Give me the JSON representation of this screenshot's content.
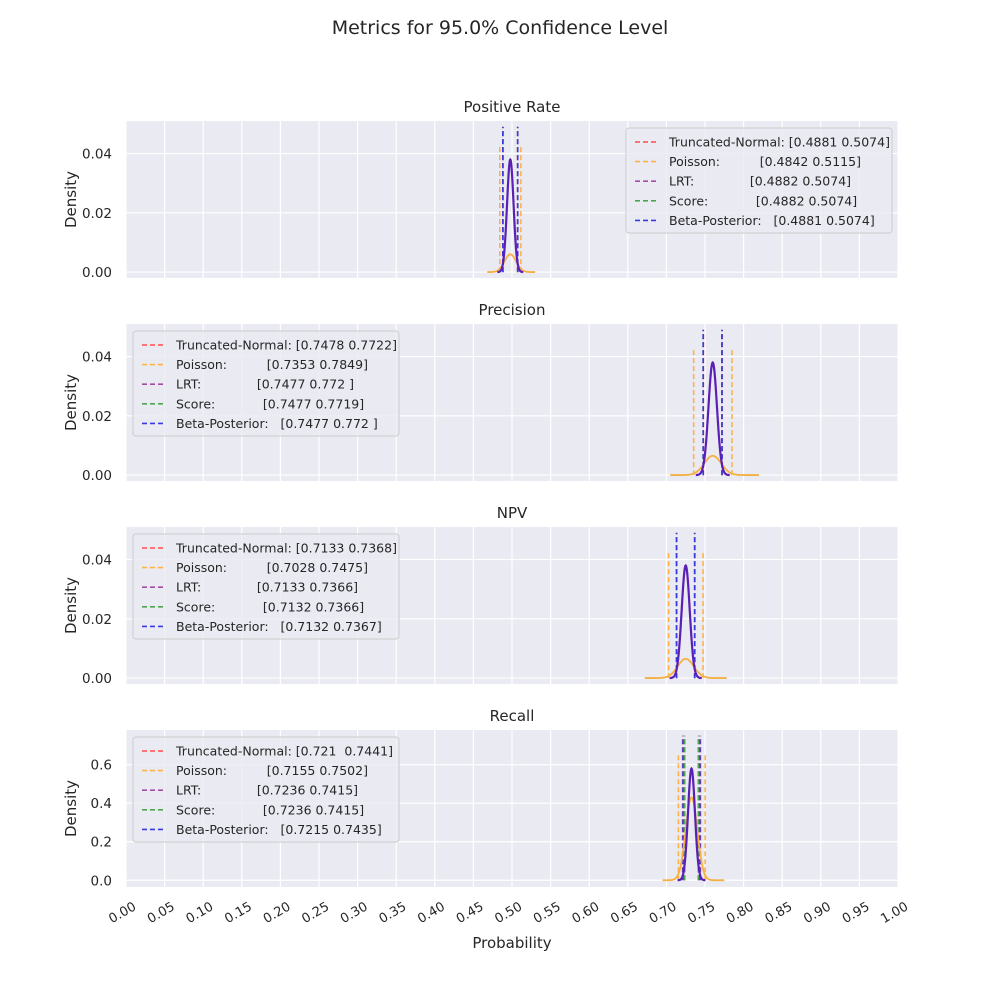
{
  "figure": {
    "title": "Metrics for 95.0% Confidence Level",
    "xlabel": "Probability",
    "ylabel": "Density"
  },
  "colors": {
    "background": "#eaeaf2",
    "grid": "#ffffff",
    "Truncated-Normal": "#ff4d4d",
    "Poisson": "#ffb347",
    "LRT": "#a64ca6",
    "Score": "#4ca64c",
    "Beta-Posterior": "#3a3adf",
    "density_main": "#5a1fb5",
    "density_poisson": "#f5b041"
  },
  "chart_data": [
    {
      "type": "line",
      "title": "Positive Rate",
      "xlim": [
        0,
        1
      ],
      "ylim": [
        -0.002,
        0.051
      ],
      "xticks": [
        "0.00",
        "0.05",
        "0.10",
        "0.15",
        "0.20",
        "0.25",
        "0.30",
        "0.35",
        "0.40",
        "0.45",
        "0.50",
        "0.55",
        "0.60",
        "0.65",
        "0.70",
        "0.75",
        "0.80",
        "0.85",
        "0.90",
        "0.95",
        "1.00"
      ],
      "yticks": [
        "0.00",
        "0.02",
        "0.04"
      ],
      "legend_position": "upper-right",
      "intervals": [
        {
          "name": "Truncated-Normal",
          "label": "Truncated-Normal: [0.4881 0.5074]",
          "lo": 0.4881,
          "hi": 0.5074
        },
        {
          "name": "Poisson",
          "label": "Poisson:          [0.4842 0.5115]",
          "lo": 0.4842,
          "hi": 0.5115
        },
        {
          "name": "LRT",
          "label": "LRT:              [0.4882 0.5074]",
          "lo": 0.4882,
          "hi": 0.5074
        },
        {
          "name": "Score",
          "label": "Score:            [0.4882 0.5074]",
          "lo": 0.4882,
          "hi": 0.5074
        },
        {
          "name": "Beta-Posterior",
          "label": "Beta-Posterior:   [0.4881 0.5074]",
          "lo": 0.4881,
          "hi": 0.5074
        }
      ],
      "ci_line_top": 0.049,
      "ci_line_top_poisson": 0.043,
      "density_center": 0.4978,
      "density_peak": 0.038,
      "density_sd": 0.0042,
      "poisson_density_peak": 0.006,
      "poisson_density_sd": 0.0075,
      "poisson_density_range": [
        0.468,
        0.53
      ]
    },
    {
      "type": "line",
      "title": "Precision",
      "xlim": [
        0,
        1
      ],
      "ylim": [
        -0.002,
        0.051
      ],
      "xticks": [
        "0.00",
        "0.05",
        "0.10",
        "0.15",
        "0.20",
        "0.25",
        "0.30",
        "0.35",
        "0.40",
        "0.45",
        "0.50",
        "0.55",
        "0.60",
        "0.65",
        "0.70",
        "0.75",
        "0.80",
        "0.85",
        "0.90",
        "0.95",
        "1.00"
      ],
      "yticks": [
        "0.00",
        "0.02",
        "0.04"
      ],
      "legend_position": "upper-left",
      "intervals": [
        {
          "name": "Truncated-Normal",
          "label": "Truncated-Normal: [0.7478 0.7722]",
          "lo": 0.7478,
          "hi": 0.7722
        },
        {
          "name": "Poisson",
          "label": "Poisson:          [0.7353 0.7849]",
          "lo": 0.7353,
          "hi": 0.7849
        },
        {
          "name": "LRT",
          "label": "LRT:              [0.7477 0.772 ]",
          "lo": 0.7477,
          "hi": 0.772
        },
        {
          "name": "Score",
          "label": "Score:            [0.7477 0.7719]",
          "lo": 0.7477,
          "hi": 0.7719
        },
        {
          "name": "Beta-Posterior",
          "label": "Beta-Posterior:   [0.7477 0.772 ]",
          "lo": 0.7477,
          "hi": 0.772
        }
      ],
      "ci_line_top": 0.049,
      "ci_line_top_poisson": 0.043,
      "density_center": 0.76,
      "density_peak": 0.038,
      "density_sd": 0.0055,
      "poisson_density_peak": 0.0065,
      "poisson_density_sd": 0.011,
      "poisson_density_range": [
        0.705,
        0.82
      ]
    },
    {
      "type": "line",
      "title": "NPV",
      "xlim": [
        0,
        1
      ],
      "ylim": [
        -0.002,
        0.051
      ],
      "xticks": [
        "0.00",
        "0.05",
        "0.10",
        "0.15",
        "0.20",
        "0.25",
        "0.30",
        "0.35",
        "0.40",
        "0.45",
        "0.50",
        "0.55",
        "0.60",
        "0.65",
        "0.70",
        "0.75",
        "0.80",
        "0.85",
        "0.90",
        "0.95",
        "1.00"
      ],
      "yticks": [
        "0.00",
        "0.02",
        "0.04"
      ],
      "legend_position": "upper-left",
      "intervals": [
        {
          "name": "Truncated-Normal",
          "label": "Truncated-Normal: [0.7133 0.7368]",
          "lo": 0.7133,
          "hi": 0.7368
        },
        {
          "name": "Poisson",
          "label": "Poisson:          [0.7028 0.7475]",
          "lo": 0.7028,
          "hi": 0.7475
        },
        {
          "name": "LRT",
          "label": "LRT:              [0.7133 0.7366]",
          "lo": 0.7133,
          "hi": 0.7366
        },
        {
          "name": "Score",
          "label": "Score:            [0.7132 0.7366]",
          "lo": 0.7132,
          "hi": 0.7366
        },
        {
          "name": "Beta-Posterior",
          "label": "Beta-Posterior:   [0.7132 0.7367]",
          "lo": 0.7132,
          "hi": 0.7367
        }
      ],
      "ci_line_top": 0.049,
      "ci_line_top_poisson": 0.043,
      "density_center": 0.725,
      "density_peak": 0.038,
      "density_sd": 0.0052,
      "poisson_density_peak": 0.0065,
      "poisson_density_sd": 0.0105,
      "poisson_density_range": [
        0.672,
        0.778
      ]
    },
    {
      "type": "line",
      "title": "Recall",
      "xlim": [
        0,
        1
      ],
      "ylim": [
        -0.035,
        0.78
      ],
      "xticks": [
        "0.00",
        "0.05",
        "0.10",
        "0.15",
        "0.20",
        "0.25",
        "0.30",
        "0.35",
        "0.40",
        "0.45",
        "0.50",
        "0.55",
        "0.60",
        "0.65",
        "0.70",
        "0.75",
        "0.80",
        "0.85",
        "0.90",
        "0.95",
        "1.00"
      ],
      "yticks": [
        "0.0",
        "0.2",
        "0.4",
        "0.6"
      ],
      "legend_position": "upper-left",
      "intervals": [
        {
          "name": "Truncated-Normal",
          "label": "Truncated-Normal: [0.721  0.7441]",
          "lo": 0.721,
          "hi": 0.7441
        },
        {
          "name": "Poisson",
          "label": "Poisson:          [0.7155 0.7502]",
          "lo": 0.7155,
          "hi": 0.7502
        },
        {
          "name": "LRT",
          "label": "LRT:              [0.7236 0.7415]",
          "lo": 0.7236,
          "hi": 0.7415
        },
        {
          "name": "Score",
          "label": "Score:            [0.7236 0.7415]",
          "lo": 0.7236,
          "hi": 0.7415
        },
        {
          "name": "Beta-Posterior",
          "label": "Beta-Posterior:   [0.7215 0.7435]",
          "lo": 0.7215,
          "hi": 0.7435
        }
      ],
      "ci_line_top": 0.75,
      "ci_line_top_poisson": 0.66,
      "density_center": 0.7325,
      "density_peak": 0.58,
      "density_sd": 0.0045,
      "poisson_density_peak": 0.43,
      "poisson_density_sd": 0.0075,
      "poisson_density_range": [
        0.695,
        0.775
      ]
    }
  ]
}
